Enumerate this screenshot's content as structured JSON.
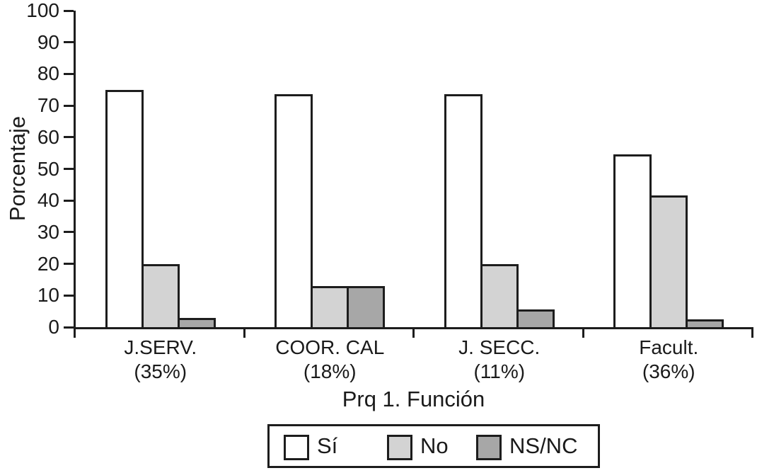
{
  "chart_data": {
    "type": "bar",
    "title": "",
    "xlabel": "Prq 1. Función",
    "ylabel": "Porcentaje",
    "ylim": [
      0,
      100
    ],
    "ytick_step": 10,
    "yticks": [
      0,
      10,
      20,
      30,
      40,
      50,
      60,
      70,
      80,
      90,
      100
    ],
    "grid": false,
    "legend_position": "bottom",
    "categories": [
      "J.SERV.",
      "COOR. CAL",
      "J. SECC.",
      "Facult."
    ],
    "category_sublabels": [
      "(35%)",
      "(18%)",
      "(11%)",
      "(36%)"
    ],
    "series": [
      {
        "name": "Sí",
        "color": "#ffffff",
        "values": [
          75,
          73.5,
          73.5,
          54.5
        ]
      },
      {
        "name": "No",
        "color": "#d3d3d3",
        "values": [
          20,
          13,
          20,
          41.5
        ]
      },
      {
        "name": "NS/NC",
        "color": "#a7a7a7",
        "values": [
          3,
          13,
          5.5,
          2.5
        ]
      }
    ],
    "outline_color": "#1d1d1d",
    "background_color": "#ffffff"
  }
}
